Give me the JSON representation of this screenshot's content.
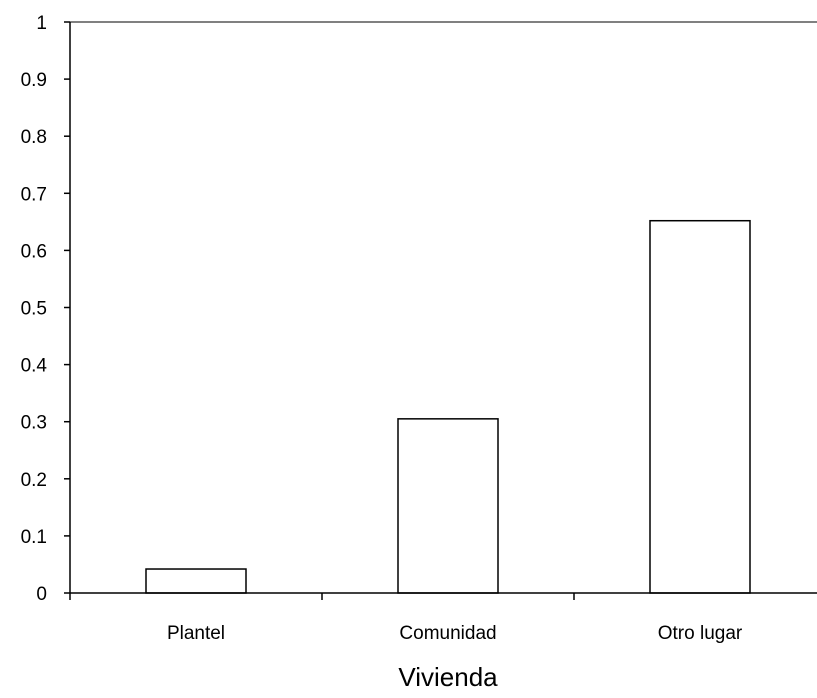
{
  "chart_data": {
    "type": "bar",
    "categories": [
      "Plantel",
      "Comunidad",
      "Otro lugar"
    ],
    "values": [
      0.042,
      0.305,
      0.652
    ],
    "title": "",
    "xlabel": "Vivienda",
    "ylabel": "",
    "ylim": [
      0,
      1
    ],
    "yticks": [
      "0",
      "0.1",
      "0.2",
      "0.3",
      "0.4",
      "0.5",
      "0.6",
      "0.7",
      "0.8",
      "0.9",
      "1"
    ],
    "grid": false,
    "legend": "none",
    "colors": {
      "bar_fill": "#ffffff",
      "bar_stroke": "#000000",
      "top_border": "#808080",
      "axis": "#000000"
    }
  }
}
